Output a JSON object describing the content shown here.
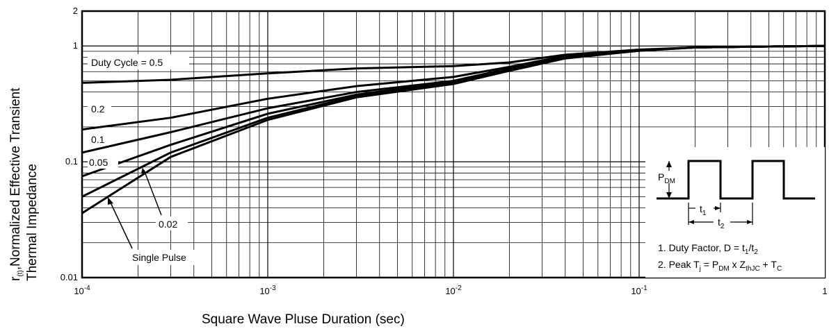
{
  "chart_data": {
    "type": "line",
    "scale": {
      "x": "log",
      "y": "log"
    },
    "xlabel": "Square Wave Pluse Duration (sec)",
    "ylabel_line1_base": "r",
    "ylabel_line1_sub": "(t)",
    "ylabel_line1_rest": ",Normalized Effective Transient",
    "ylabel_line2": "Thermal Impedance",
    "xlim": [
      0.0001,
      1
    ],
    "ylim": [
      0.01,
      2
    ],
    "grid": true,
    "x_ticks": [
      {
        "value": 0.0001,
        "base": "10",
        "exp": "-4"
      },
      {
        "value": 0.001,
        "base": "10",
        "exp": "-3"
      },
      {
        "value": 0.01,
        "base": "10",
        "exp": "-2"
      },
      {
        "value": 0.1,
        "base": "10",
        "exp": "-1"
      },
      {
        "value": 1,
        "base": "1",
        "exp": ""
      }
    ],
    "y_ticks": [
      {
        "value": 0.01,
        "label": "0.01"
      },
      {
        "value": 0.1,
        "label": "0.1"
      },
      {
        "value": 1,
        "label": "1"
      },
      {
        "value": 2,
        "label": "2"
      }
    ],
    "series": [
      {
        "name": "Duty Cycle = 0.5",
        "x": [
          0.0001,
          0.0003,
          0.001,
          0.003,
          0.01,
          0.02,
          0.04,
          0.1,
          0.2,
          0.5,
          1
        ],
        "y": [
          0.48,
          0.51,
          0.58,
          0.64,
          0.67,
          0.72,
          0.84,
          0.93,
          0.97,
          0.99,
          1.0
        ]
      },
      {
        "name": "0.2",
        "x": [
          0.0001,
          0.0003,
          0.001,
          0.003,
          0.01,
          0.02,
          0.04,
          0.1,
          0.2,
          0.5,
          1
        ],
        "y": [
          0.19,
          0.24,
          0.35,
          0.45,
          0.54,
          0.66,
          0.82,
          0.92,
          0.97,
          0.99,
          1.0
        ]
      },
      {
        "name": "0.1",
        "x": [
          0.0001,
          0.0003,
          0.001,
          0.003,
          0.01,
          0.02,
          0.04,
          0.1,
          0.2,
          0.5,
          1
        ],
        "y": [
          0.12,
          0.18,
          0.29,
          0.4,
          0.5,
          0.64,
          0.81,
          0.92,
          0.97,
          0.99,
          1.0
        ]
      },
      {
        "name": "0.05",
        "x": [
          0.0001,
          0.0003,
          0.001,
          0.003,
          0.01,
          0.02,
          0.04,
          0.1,
          0.2,
          0.5,
          1
        ],
        "y": [
          0.075,
          0.14,
          0.26,
          0.38,
          0.49,
          0.63,
          0.8,
          0.92,
          0.97,
          0.99,
          1.0
        ]
      },
      {
        "name": "0.02",
        "x": [
          0.0001,
          0.0003,
          0.001,
          0.003,
          0.01,
          0.02,
          0.04,
          0.1,
          0.2,
          0.5,
          1
        ],
        "y": [
          0.05,
          0.12,
          0.24,
          0.37,
          0.48,
          0.62,
          0.79,
          0.91,
          0.97,
          0.99,
          1.0
        ]
      },
      {
        "name": "Single Pulse",
        "x": [
          0.0001,
          0.0003,
          0.001,
          0.003,
          0.01,
          0.02,
          0.04,
          0.1,
          0.2,
          0.5,
          1
        ],
        "y": [
          0.036,
          0.11,
          0.23,
          0.36,
          0.47,
          0.61,
          0.78,
          0.91,
          0.97,
          0.99,
          1.0
        ]
      }
    ],
    "inset": {
      "pdm_base": "P",
      "pdm_sub": "DM",
      "t1_base": "t",
      "t1_sub": "1",
      "t2_base": "t",
      "t2_sub": "2"
    },
    "notes": {
      "note1": "1.  Duty Factor, D = t",
      "note1_sub1": "1",
      "note1_mid": "/t",
      "note1_sub2": "2",
      "note2": "2.  Peak T",
      "note2_sub_j": "j",
      "note2_a": " = P",
      "note2_sub_dm": "DM",
      "note2_b": " x Z",
      "note2_sub_th": "thJC",
      "note2_c": " + T",
      "note2_sub_c": "C"
    }
  }
}
